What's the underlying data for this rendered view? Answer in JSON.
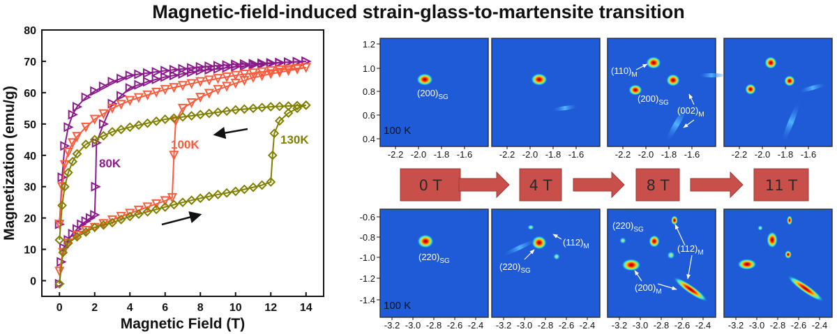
{
  "figure_title": "Magnetic-field-induced strain-glass-to-martensite transition",
  "chart_data": {
    "type": "line",
    "xlabel": "Magnetic Field (T)",
    "ylabel": "Magnetization (emu/g)",
    "xlim": [
      -1,
      15
    ],
    "ylim": [
      -5,
      80
    ],
    "xticks": [
      "0",
      "2",
      "4",
      "6",
      "8",
      "10",
      "12",
      "14"
    ],
    "yticks": [
      "0",
      "10",
      "20",
      "30",
      "40",
      "50",
      "60",
      "70",
      "80"
    ],
    "series": [
      {
        "name": "80K",
        "color": "#8b1a8b",
        "marker": "triangle-right",
        "up_x": [
          0,
          0.1,
          0.25,
          0.5,
          0.75,
          1.0,
          1.25,
          1.5,
          1.75,
          2.0,
          2.05,
          2.1,
          2.5,
          3,
          4,
          5,
          6,
          7,
          8,
          9,
          10,
          11,
          12,
          13,
          14
        ],
        "up_y": [
          -1,
          6,
          10.5,
          13,
          15,
          16.5,
          18,
          19,
          20,
          21,
          30,
          44,
          50,
          56.5,
          61.5,
          63.5,
          65,
          66,
          67,
          67.6,
          68.3,
          68.8,
          69.3,
          69.7,
          70
        ],
        "down_x": [
          14,
          12,
          10,
          8,
          6,
          4,
          3,
          2,
          1.5,
          1,
          0.75,
          0.5,
          0.3,
          0.15,
          0
        ],
        "down_y": [
          70,
          69.5,
          69,
          68.2,
          67,
          65.5,
          63.5,
          60.5,
          58.5,
          55.5,
          53,
          49,
          43,
          33,
          18
        ]
      },
      {
        "name": "100K",
        "color": "#ff5a3c",
        "marker": "triangle-down",
        "up_x": [
          0,
          0.2,
          0.5,
          1,
          1.5,
          2,
          2.5,
          3,
          3.5,
          4,
          4.5,
          5,
          5.5,
          6,
          6.4,
          6.5,
          6.6,
          7,
          8,
          9,
          10,
          11,
          12,
          13,
          14
        ],
        "up_y": [
          3,
          9,
          12,
          14.5,
          16,
          17,
          18.2,
          19.4,
          20.5,
          21.5,
          22.5,
          23.5,
          24.5,
          25.5,
          26.5,
          40,
          51,
          55,
          58.5,
          61,
          63,
          64.8,
          66,
          67,
          68
        ],
        "down_x": [
          14,
          12,
          10,
          8,
          6,
          4,
          3,
          2,
          1.5,
          1,
          0.75,
          0.5,
          0.3,
          0.15,
          0
        ],
        "down_y": [
          68,
          67,
          65.5,
          63.5,
          61,
          57.5,
          55,
          51.5,
          49,
          46,
          44,
          41,
          37,
          30,
          18
        ]
      },
      {
        "name": "130K",
        "color": "#808000",
        "marker": "diamond",
        "up_x": [
          0,
          0.2,
          0.5,
          1,
          2,
          3,
          4,
          5,
          6,
          7,
          8,
          9,
          10,
          11,
          11.5,
          12,
          12.1,
          12.2,
          12.5,
          13,
          13.5,
          14
        ],
        "up_y": [
          -1,
          9,
          12,
          14,
          17,
          18.5,
          20.5,
          22,
          23.5,
          25,
          26.3,
          27.5,
          28.5,
          29.8,
          30.5,
          31.5,
          40,
          47,
          51,
          53.5,
          55,
          56
        ],
        "down_x": [
          14,
          12,
          10,
          8,
          6,
          4,
          3,
          2,
          1.5,
          1,
          0.75,
          0.5,
          0.3,
          0.15,
          0
        ],
        "down_y": [
          56,
          55.5,
          54.5,
          53,
          51.5,
          49,
          47.5,
          45,
          43.5,
          40.5,
          38,
          34.5,
          30,
          24,
          13
        ]
      }
    ],
    "annotations": [
      "80K",
      "100K",
      "130K"
    ]
  },
  "maps": {
    "top_y_ticks": [
      "1.2",
      "1.0",
      "0.8",
      "0.6",
      "0.4"
    ],
    "top_x_ticks": [
      "-2.2",
      "-2.0",
      "-1.8",
      "-1.6"
    ],
    "bottom_y_ticks": [
      "-0.6",
      "-0.8",
      "-1.0",
      "-1.2",
      "-1.4"
    ],
    "bottom_x_ticks": [
      "-3.2",
      "-3.0",
      "-2.8",
      "-2.6",
      "-2.4"
    ],
    "temperature_label": "100 K",
    "fields": [
      "0 T",
      "4 T",
      "8 T",
      "11 T"
    ],
    "labels": {
      "t1_200": "(200)",
      "t1_200_sub": "SG",
      "t3_110": "(110)",
      "t3_110_sub": "M",
      "t3_200": "(200)",
      "t3_200_sub": "SG",
      "t3_002": "(002)",
      "t3_002_sub": "M",
      "b1_220": "(220)",
      "b1_220_sub": "SG",
      "b2_112": "(112)",
      "b2_112_sub": "M",
      "b2_220": "(220)",
      "b2_220_sub": "SG",
      "b3_220": "(220)",
      "b3_220_sub": "SG",
      "b3_112": "(112)",
      "b3_112_sub": "M",
      "b3_200": "(200)",
      "b3_200_sub": "M"
    },
    "colors": {
      "background": "#1f5bd6",
      "spot_core": "#ff1a00",
      "arrow": "#c9504a"
    }
  }
}
